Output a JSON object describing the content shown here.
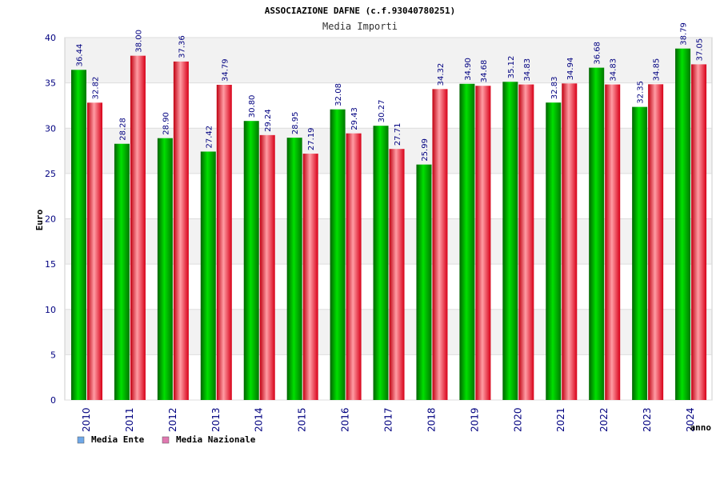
{
  "chart_data": {
    "type": "bar",
    "title": "ASSOCIAZIONE DAFNE (c.f.93040780251)",
    "subtitle": "Media Importi",
    "xlabel": "anno",
    "ylabel": "Euro",
    "ylim": [
      0,
      40
    ],
    "yticks": [
      0,
      5,
      10,
      15,
      20,
      25,
      30,
      35,
      40
    ],
    "grid": true,
    "legend_position": "bottom-left",
    "categories": [
      "2010",
      "2011",
      "2012",
      "2013",
      "2014",
      "2015",
      "2016",
      "2017",
      "2018",
      "2019",
      "2020",
      "2021",
      "2022",
      "2023",
      "2024"
    ],
    "series": [
      {
        "name": "Media Ente",
        "color": "#00b400",
        "legend_color": "#6fa8e8",
        "values": [
          36.44,
          28.28,
          28.9,
          27.42,
          30.8,
          28.95,
          32.08,
          30.27,
          25.99,
          34.9,
          35.12,
          32.83,
          36.68,
          32.35,
          38.79
        ],
        "labels": [
          "36.44",
          "28.28",
          "28.90",
          "27.42",
          "30.80",
          "28.95",
          "32.08",
          "30.27",
          "25.99",
          "34.90",
          "35.12",
          "32.83",
          "36.68",
          "32.35",
          "38.79"
        ]
      },
      {
        "name": "Media Nazionale",
        "color": "#e8202e",
        "legend_color": "#e078b0",
        "values": [
          32.82,
          38.0,
          37.36,
          34.79,
          29.24,
          27.19,
          29.43,
          27.71,
          34.32,
          34.68,
          34.83,
          34.94,
          34.83,
          34.85,
          37.05
        ],
        "labels": [
          "32.82",
          "38.00",
          "37.36",
          "34.79",
          "29.24",
          "27.19",
          "29.43",
          "27.71",
          "34.32",
          "34.68",
          "34.83",
          "34.94",
          "34.83",
          "34.85",
          "37.05"
        ]
      }
    ]
  }
}
